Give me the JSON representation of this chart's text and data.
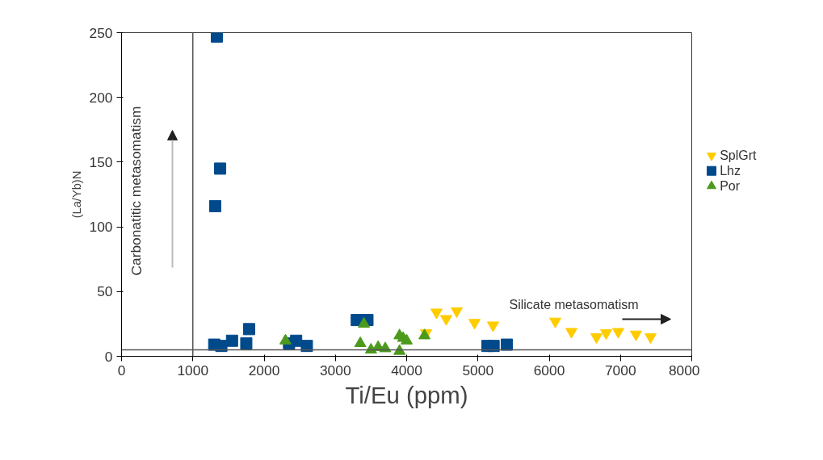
{
  "chart_data": {
    "type": "scatter",
    "xlabel": "Ti/Eu (ppm)",
    "ylabel": "(La/Yb)N",
    "xlim": [
      0,
      8000
    ],
    "xticks": [
      0,
      1000,
      2000,
      3000,
      4000,
      5000,
      6000,
      7000,
      8000
    ],
    "ylim": [
      0,
      250
    ],
    "yticks": [
      0,
      50,
      100,
      150,
      200,
      250
    ],
    "grid": false,
    "legend": "right",
    "series": [
      {
        "name": "SplGrt",
        "color": "#ffcc00",
        "x": [
          4272,
          4419,
          4555,
          4703,
          4952,
          5212,
          6085,
          6312,
          6663,
          6799,
          6969,
          7218,
          7422
        ],
        "values": [
          18,
          34,
          29,
          35,
          26,
          24,
          27,
          19,
          15,
          18,
          19,
          17,
          15
        ]
      },
      {
        "name": "Lhz",
        "color": "#004a8c",
        "x": [
          1337,
          1383,
          1314,
          1300,
          1400,
          1550,
          1750,
          1790,
          2350,
          2450,
          2600,
          3300,
          3450,
          5133,
          5220,
          5405
        ],
        "values": [
          247,
          145,
          116,
          9,
          8,
          12,
          10,
          21,
          10,
          12,
          8,
          28,
          28,
          8,
          8,
          9
        ]
      },
      {
        "name": "Por",
        "color": "#4c9a1c",
        "x": [
          2300,
          3400,
          3350,
          3500,
          3600,
          3700,
          3900,
          3950,
          3900,
          4000,
          4250
        ],
        "values": [
          12,
          25,
          10,
          5,
          7,
          6,
          16,
          14,
          4,
          12,
          16
        ]
      }
    ],
    "ref_lines": [
      {
        "axis": "x",
        "value": 1000,
        "color": "#555555"
      },
      {
        "axis": "y",
        "value": 5,
        "color": "#555555"
      }
    ],
    "annotations": [
      "Carbonatitic metasomatism",
      "Silicate metasomatism"
    ]
  }
}
